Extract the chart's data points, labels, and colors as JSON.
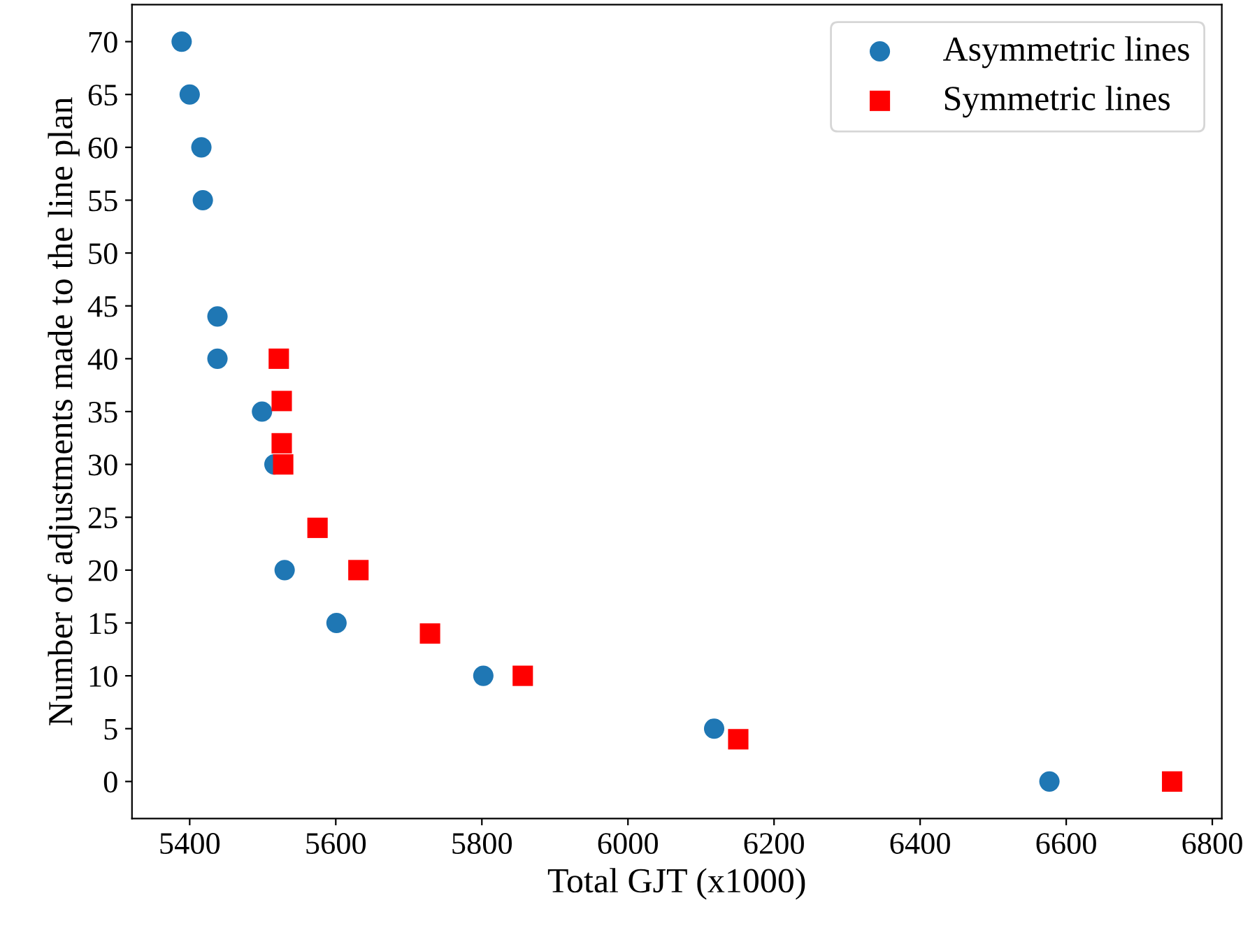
{
  "chart_data": {
    "type": "scatter",
    "xlabel": "Total GJT (x1000)",
    "ylabel": "Number of adjustments made to the line plan",
    "series": [
      {
        "name": "Asymmetric lines",
        "color": "#1f77b4",
        "marker": "circle",
        "x": [
          5389,
          5400,
          5416,
          5418,
          5438,
          5438,
          5499,
          5516,
          5530,
          5601,
          5802,
          6118,
          6577
        ],
        "values": [
          70,
          65,
          60,
          55,
          44,
          40,
          35,
          30,
          20,
          15,
          10,
          5,
          0
        ]
      },
      {
        "name": "Symmetric lines",
        "color": "#ff0000",
        "marker": "square",
        "x": [
          5522,
          5526,
          5526,
          5528,
          5575,
          5631,
          5729,
          5856,
          6151,
          6745
        ],
        "values": [
          40,
          36,
          32,
          30,
          24,
          20,
          14,
          10,
          4,
          0
        ]
      }
    ],
    "xlim": [
      5321,
      6813
    ],
    "ylim": [
      -3.5,
      73.5
    ],
    "xticks": [
      5400,
      5600,
      5800,
      6000,
      6200,
      6400,
      6600,
      6800
    ],
    "yticks": [
      0,
      5,
      10,
      15,
      20,
      25,
      30,
      35,
      40,
      45,
      50,
      55,
      60,
      65,
      70
    ],
    "grid": false,
    "legend": "top right"
  }
}
